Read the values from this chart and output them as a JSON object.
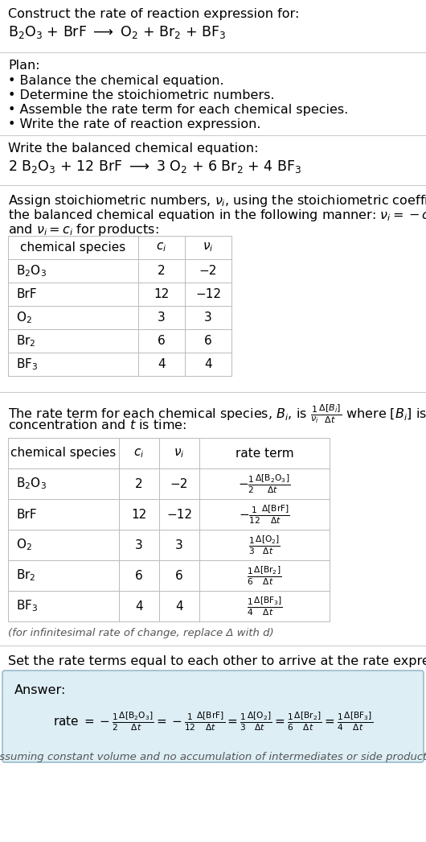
{
  "bg_color": "#ffffff",
  "text_color": "#000000",
  "gray_italic": "#555555",
  "answer_bg": "#ddeef5",
  "answer_border": "#99bbcc",
  "table_line_color": "#bbbbbb",
  "divider_color": "#cccccc",
  "title_text": "Construct the rate of reaction expression for:",
  "plan_header": "Plan:",
  "plan_items": [
    "• Balance the chemical equation.",
    "• Determine the stoichiometric numbers.",
    "• Assemble the rate term for each chemical species.",
    "• Write the rate of reaction expression."
  ],
  "balanced_header": "Write the balanced chemical equation:",
  "stoich_line1": "Assign stoichiometric numbers, $\\nu_i$, using the stoichiometric coefficients, $c_i$, from",
  "stoich_line2": "the balanced chemical equation in the following manner: $\\nu_i = -c_i$ for reactants",
  "stoich_line3": "and $\\nu_i = c_i$ for products:",
  "rate_line1": "The rate term for each chemical species, $B_i$, is $\\frac{1}{\\nu_i}\\frac{\\Delta[B_i]}{\\Delta t}$ where $[B_i]$ is the amount",
  "rate_line2": "concentration and $t$ is time:",
  "infinitesimal_note": "(for infinitesimal rate of change, replace Δ with d)",
  "set_equal_text": "Set the rate terms equal to each other to arrive at the rate expression:",
  "answer_label": "Answer:",
  "assumption_note": "(assuming constant volume and no accumulation of intermediates or side products)",
  "species_math": [
    "$\\mathregular{B_2O_3}$",
    "BrF",
    "$\\mathregular{O_2}$",
    "$\\mathregular{Br_2}$",
    "$\\mathregular{BF_3}$"
  ],
  "ci": [
    "2",
    "12",
    "3",
    "6",
    "4"
  ],
  "nu_i": [
    "−2",
    "−12",
    "3",
    "6",
    "4"
  ],
  "rate_terms": [
    "$-\\frac{1}{2}\\frac{\\Delta[\\mathregular{B_2O_3}]}{\\Delta t}$",
    "$-\\frac{1}{12}\\frac{\\Delta[\\mathregular{BrF}]}{\\Delta t}$",
    "$\\frac{1}{3}\\frac{\\Delta[\\mathregular{O_2}]}{\\Delta t}$",
    "$\\frac{1}{6}\\frac{\\Delta[\\mathregular{Br_2}]}{\\Delta t}$",
    "$\\frac{1}{4}\\frac{\\Delta[\\mathregular{BF_3}]}{\\Delta t}$"
  ]
}
